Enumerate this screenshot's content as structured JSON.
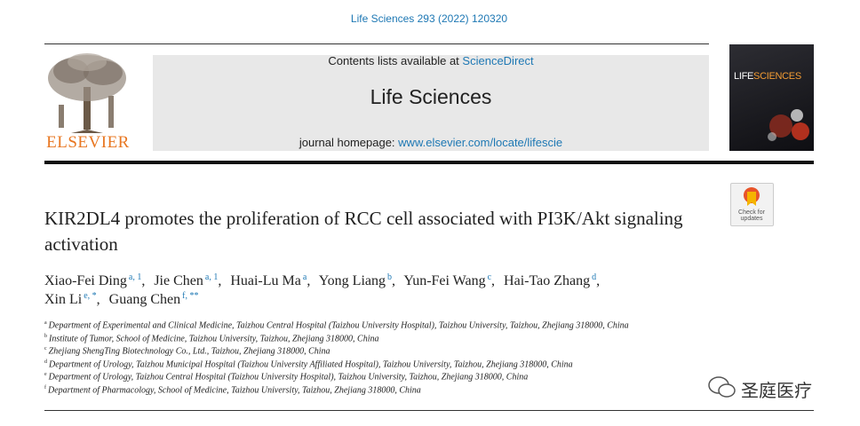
{
  "citation": "Life Sciences 293 (2022) 120320",
  "header": {
    "contents_prefix": "Contents lists available at",
    "contents_link": "ScienceDirect",
    "journal": "Life Sciences",
    "homepage_prefix": "journal homepage:",
    "homepage_link": "www.elsevier.com/locate/lifescie",
    "publisher": "ELSEVIER",
    "cover_title_1": "LIFE",
    "cover_title_2": "SCIENCES"
  },
  "check_updates": {
    "line1": "Check for",
    "line2": "updates"
  },
  "title": "KIR2DL4 promotes the proliferation of RCC cell associated with PI3K/Akt signaling activation",
  "author_lines": [
    [
      {
        "name": "Xiao-Fei Ding",
        "sup": "a, 1"
      },
      {
        "name": "Jie Chen",
        "sup": "a, 1"
      },
      {
        "name": "Huai-Lu Ma",
        "sup": "a"
      },
      {
        "name": "Yong Liang",
        "sup": "b"
      },
      {
        "name": "Yun-Fei Wang",
        "sup": "c"
      },
      {
        "name": "Hai-Tao Zhang",
        "sup": "d"
      }
    ],
    [
      {
        "name": "Xin Li",
        "sup": "e, *"
      },
      {
        "name": "Guang Chen",
        "sup": "f, **"
      }
    ]
  ],
  "affiliations": [
    {
      "mark": "a",
      "text": "Department of Experimental and Clinical Medicine, Taizhou Central Hospital (Taizhou University Hospital), Taizhou University, Taizhou, Zhejiang 318000, China"
    },
    {
      "mark": "b",
      "text": "Institute of Tumor, School of Medicine, Taizhou University, Taizhou, Zhejiang 318000, China"
    },
    {
      "mark": "c",
      "text": "Zhejiang ShengTing Biotechnology Co., Ltd., Taizhou, Zhejiang 318000, China"
    },
    {
      "mark": "d",
      "text": "Department of Urology, Taizhou Municipal Hospital (Taizhou University Affiliated Hospital), Taizhou University, Taizhou, Zhejiang 318000, China"
    },
    {
      "mark": "e",
      "text": "Department of Urology, Taizhou Central Hospital (Taizhou University Hospital), Taizhou University, Taizhou, Zhejiang 318000, China"
    },
    {
      "mark": "f",
      "text": "Department of Pharmacology, School of Medicine, Taizhou University, Taizhou, Zhejiang 318000, China"
    }
  ],
  "watermark": "圣庭医疗"
}
